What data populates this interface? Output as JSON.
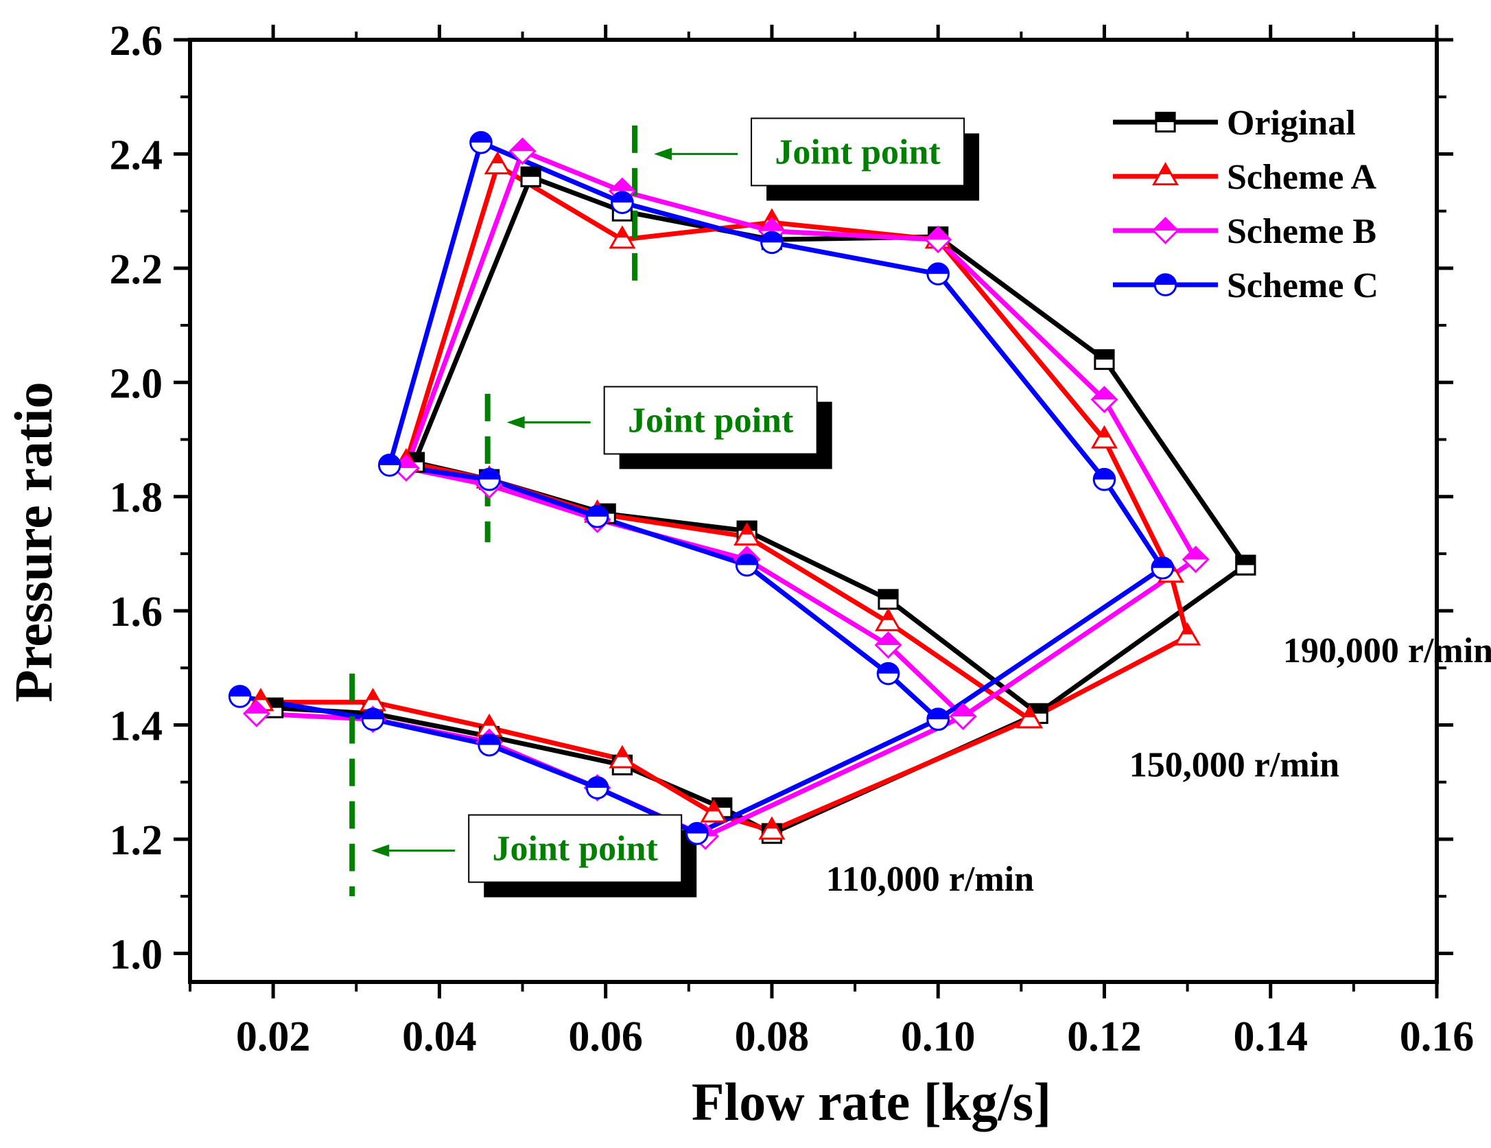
{
  "chart_data": {
    "type": "line",
    "title": "",
    "xlabel": "Flow rate [kg/s]",
    "ylabel": "Pressure ratio",
    "xlim": [
      0.01,
      0.16
    ],
    "ylim": [
      0.95,
      2.6
    ],
    "xticks": [
      0.02,
      0.04,
      0.06,
      0.08,
      0.1,
      0.12,
      0.14,
      0.16
    ],
    "xtick_labels": [
      "0.02",
      "0.04",
      "0.06",
      "0.08",
      "0.10",
      "0.12",
      "0.14",
      "0.16"
    ],
    "yticks": [
      1.0,
      1.2,
      1.4,
      1.6,
      1.8,
      2.0,
      2.2,
      2.4,
      2.6
    ],
    "ytick_labels": [
      "1.0",
      "1.2",
      "1.4",
      "1.6",
      "1.8",
      "2.0",
      "2.2",
      "2.4",
      "2.6"
    ],
    "legend_position": "top-right",
    "series": [
      {
        "name": "Original",
        "color": "#000000",
        "marker": "square",
        "points": [
          [
            0.02,
            1.43
          ],
          [
            0.032,
            1.42
          ],
          [
            0.046,
            1.38
          ],
          [
            0.062,
            1.33
          ],
          [
            0.074,
            1.255
          ],
          [
            0.08,
            1.21
          ],
          [
            0.112,
            1.42
          ],
          [
            0.137,
            1.68
          ],
          [
            0.12,
            2.04
          ],
          [
            0.1,
            2.255
          ],
          [
            0.08,
            2.25
          ],
          [
            0.062,
            2.3
          ],
          [
            0.051,
            2.36
          ],
          [
            0.037,
            1.86
          ],
          [
            0.046,
            1.83
          ],
          [
            0.06,
            1.77
          ],
          [
            0.077,
            1.74
          ],
          [
            0.094,
            1.62
          ],
          [
            0.112,
            1.42
          ],
          [
            0.137,
            1.68
          ]
        ]
      },
      {
        "name": "Scheme A",
        "color": "#ff0000",
        "marker": "triangle",
        "points": [
          [
            0.0185,
            1.44
          ],
          [
            0.032,
            1.44
          ],
          [
            0.046,
            1.395
          ],
          [
            0.062,
            1.34
          ],
          [
            0.073,
            1.245
          ],
          [
            0.08,
            1.215
          ],
          [
            0.111,
            1.41
          ],
          [
            0.13,
            1.555
          ],
          [
            0.128,
            1.665
          ],
          [
            0.12,
            1.9
          ],
          [
            0.1,
            2.25
          ],
          [
            0.08,
            2.28
          ],
          [
            0.062,
            2.25
          ],
          [
            0.047,
            2.38
          ],
          [
            0.036,
            1.86
          ],
          [
            0.046,
            1.83
          ],
          [
            0.059,
            1.77
          ],
          [
            0.077,
            1.73
          ],
          [
            0.094,
            1.58
          ],
          [
            0.111,
            1.41
          ]
        ]
      },
      {
        "name": "Scheme B",
        "color": "#ff00ff",
        "marker": "diamond",
        "points": [
          [
            0.018,
            1.42
          ],
          [
            0.032,
            1.41
          ],
          [
            0.046,
            1.37
          ],
          [
            0.059,
            1.29
          ],
          [
            0.072,
            1.205
          ],
          [
            0.103,
            1.415
          ],
          [
            0.131,
            1.69
          ],
          [
            0.12,
            1.97
          ],
          [
            0.1,
            2.25
          ],
          [
            0.08,
            2.265
          ],
          [
            0.062,
            2.335
          ],
          [
            0.05,
            2.405
          ],
          [
            0.036,
            1.85
          ],
          [
            0.046,
            1.82
          ],
          [
            0.059,
            1.76
          ],
          [
            0.077,
            1.69
          ],
          [
            0.094,
            1.54
          ],
          [
            0.103,
            1.415
          ]
        ]
      },
      {
        "name": "Scheme C",
        "color": "#0000ff",
        "marker": "circle",
        "points": [
          [
            0.016,
            1.45
          ],
          [
            0.032,
            1.41
          ],
          [
            0.046,
            1.365
          ],
          [
            0.059,
            1.29
          ],
          [
            0.071,
            1.21
          ],
          [
            0.1,
            1.41
          ],
          [
            0.127,
            1.675
          ],
          [
            0.12,
            1.83
          ],
          [
            0.1,
            2.19
          ],
          [
            0.08,
            2.245
          ],
          [
            0.062,
            2.315
          ],
          [
            0.045,
            2.42
          ],
          [
            0.034,
            1.855
          ],
          [
            0.046,
            1.83
          ],
          [
            0.059,
            1.765
          ],
          [
            0.077,
            1.68
          ],
          [
            0.094,
            1.49
          ],
          [
            0.1,
            1.41
          ]
        ]
      }
    ],
    "annotations": [
      {
        "text": "Joint point",
        "x_data": 0.0635,
        "y_from": 2.17,
        "y_to": 2.45,
        "arrow_y": 2.4,
        "color": "#007f00"
      },
      {
        "text": "Joint point",
        "x_data": 0.0458,
        "y_from": 1.72,
        "y_to": 1.98,
        "arrow_y": 1.93,
        "color": "#007f00"
      },
      {
        "text": "Joint point",
        "x_data": 0.0295,
        "y_from": 1.1,
        "y_to": 1.49,
        "arrow_y": 1.18,
        "color": "#007f00"
      }
    ],
    "speed_labels": [
      {
        "text": "190,000 r/min",
        "x_data": 0.1415,
        "y_data": 1.51
      },
      {
        "text": "150,000 r/min",
        "x_data": 0.123,
        "y_data": 1.31
      },
      {
        "text": "110,000 r/min",
        "x_data": 0.0865,
        "y_data": 1.11
      }
    ]
  }
}
